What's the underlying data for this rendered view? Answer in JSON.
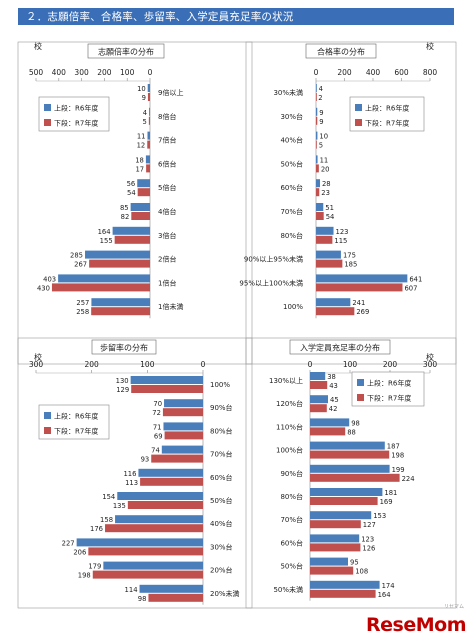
{
  "header": {
    "title": "２．志願倍率、合格率、歩留率、入学定員充足率の状況"
  },
  "watermark": {
    "text": "ReseMom",
    "sub": "リセマム"
  },
  "colors": {
    "series_a": "#4a7ebb",
    "series_b": "#c0504d",
    "header_bg": "#3a6fb7"
  },
  "chart_data": [
    {
      "id": "shigan",
      "type": "bar",
      "orientation": "horizontal",
      "direction": "right-to-left",
      "title": "志願倍率の分布",
      "unit": "校",
      "xlim": [
        0,
        500
      ],
      "ticks": [
        "500",
        "400",
        "300",
        "200",
        "100",
        "0"
      ],
      "categories": [
        "9倍以上",
        "8倍台",
        "7倍台",
        "6倍台",
        "5倍台",
        "4倍台",
        "3倍台",
        "2倍台",
        "1倍台",
        "1倍未満"
      ],
      "legend": [
        "上段：R6年度",
        "下段：R7年度"
      ],
      "legend_position": "top-left",
      "series": [
        {
          "values": [
            10,
            4,
            11,
            18,
            56,
            85,
            164,
            285,
            403,
            257
          ]
        },
        {
          "values": [
            9,
            5,
            12,
            17,
            54,
            82,
            155,
            267,
            430,
            258
          ]
        }
      ]
    },
    {
      "id": "goukaku",
      "type": "bar",
      "orientation": "horizontal",
      "direction": "left-to-right",
      "title": "合格率の分布",
      "unit": "校",
      "xlim": [
        0,
        800
      ],
      "ticks": [
        "0",
        "200",
        "400",
        "600",
        "800"
      ],
      "categories": [
        "30%未満",
        "30%台",
        "40%台",
        "50%台",
        "60%台",
        "70%台",
        "80%台",
        "90%以上95%未満",
        "95%以上100%未満",
        "100%"
      ],
      "legend": [
        "上段：R6年度",
        "下段：R7年度"
      ],
      "legend_position": "top-right",
      "series": [
        {
          "values": [
            4,
            9,
            10,
            11,
            28,
            51,
            123,
            175,
            641,
            241
          ]
        },
        {
          "values": [
            2,
            9,
            5,
            20,
            23,
            54,
            115,
            185,
            607,
            269
          ]
        }
      ]
    },
    {
      "id": "budomari",
      "type": "bar",
      "orientation": "horizontal",
      "direction": "right-to-left",
      "title": "歩留率の分布",
      "unit": "校",
      "xlim": [
        0,
        300
      ],
      "ticks": [
        "300",
        "200",
        "100",
        "0"
      ],
      "categories": [
        "100%",
        "90%台",
        "80%台",
        "70%台",
        "60%台",
        "50%台",
        "40%台",
        "30%台",
        "20%台",
        "20%未満"
      ],
      "legend": [
        "上段：R6年度",
        "下段：R7年度"
      ],
      "legend_position": "top-left",
      "series": [
        {
          "values": [
            130,
            70,
            71,
            74,
            116,
            154,
            158,
            227,
            179,
            114
          ]
        },
        {
          "values": [
            129,
            72,
            69,
            93,
            113,
            135,
            176,
            206,
            198,
            98
          ]
        }
      ]
    },
    {
      "id": "juusoku",
      "type": "bar",
      "orientation": "horizontal",
      "direction": "left-to-right",
      "title": "入学定員充足率の分布",
      "unit": "校",
      "xlim": [
        0,
        300
      ],
      "ticks": [
        "0",
        "100",
        "200",
        "300"
      ],
      "categories": [
        "130%以上",
        "120%台",
        "110%台",
        "100%台",
        "90%台",
        "80%台",
        "70%台",
        "60%台",
        "50%台",
        "50%未満"
      ],
      "legend": [
        "上段：R6年度",
        "下段：R7年度"
      ],
      "legend_position": "top-right",
      "series": [
        {
          "values": [
            38,
            45,
            98,
            187,
            199,
            181,
            153,
            123,
            95,
            174
          ]
        },
        {
          "values": [
            43,
            42,
            88,
            198,
            224,
            169,
            127,
            126,
            108,
            164
          ]
        }
      ]
    }
  ]
}
